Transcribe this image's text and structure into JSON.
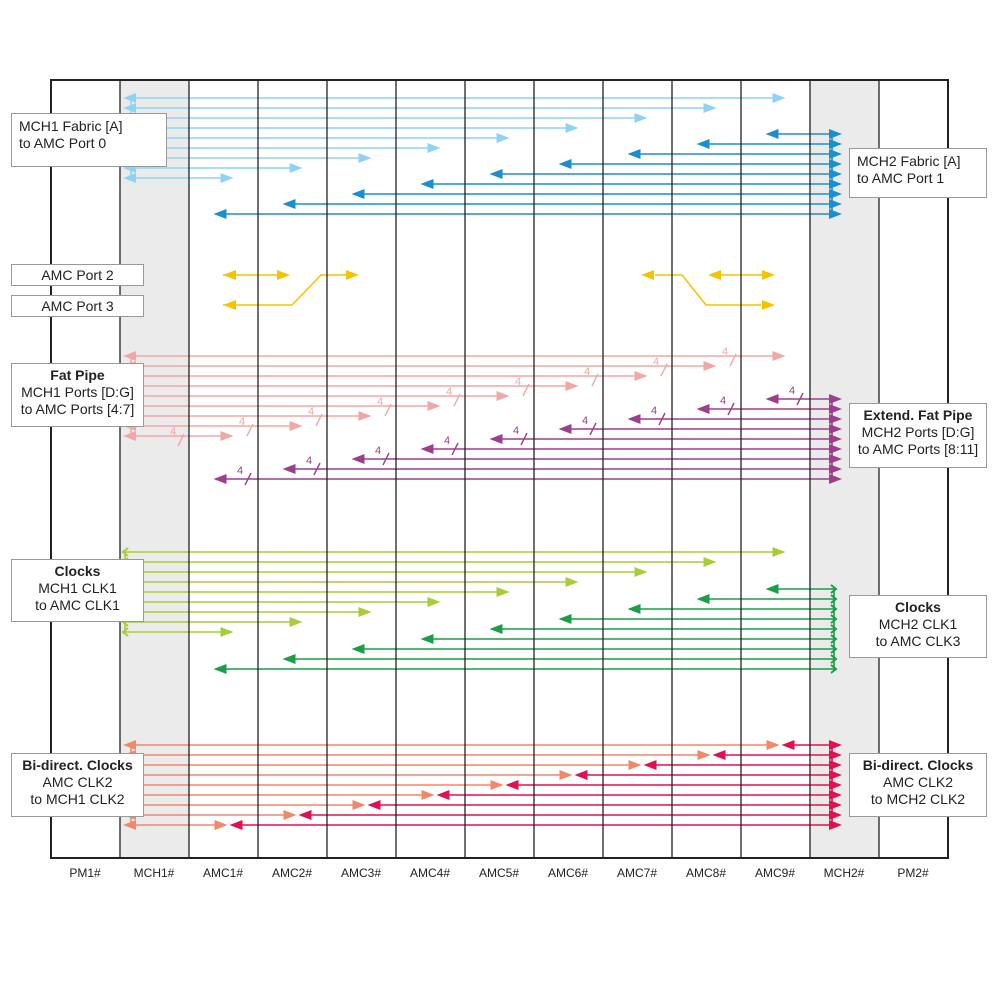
{
  "slots": [
    "PM1#",
    "MCH1#",
    "AMC1#",
    "AMC2#",
    "AMC3#",
    "AMC4#",
    "AMC5#",
    "AMC6#",
    "AMC7#",
    "AMC8#",
    "AMC9#",
    "MCH2#",
    "PM2#"
  ],
  "labels": {
    "mch1_fabric": {
      "line1": "MCH1 Fabric [A]",
      "line2": "to AMC Port 0"
    },
    "mch2_fabric": {
      "line1": "MCH2 Fabric [A]",
      "line2": "to AMC Port 1"
    },
    "amc_port2": "AMC Port 2",
    "amc_port3": "AMC Port 3",
    "fat_pipe": {
      "title": "Fat Pipe",
      "line1": "MCH1 Ports [D:G]",
      "line2": "to AMC Ports [4:7]"
    },
    "ext_fat_pipe": {
      "title": "Extend. Fat Pipe",
      "line1": "MCH2 Ports [D:G]",
      "line2": "to AMC Ports [8:11]"
    },
    "clocks_mch1": {
      "title": "Clocks",
      "line1": "MCH1 CLK1",
      "line2": "to AMC CLK1"
    },
    "clocks_mch2": {
      "title": "Clocks",
      "line1": "MCH2 CLK1",
      "line2": "to AMC CLK3"
    },
    "bidir_mch1": {
      "title": "Bi-direct. Clocks",
      "line1": "AMC CLK2",
      "line2": "to MCH1 CLK2"
    },
    "bidir_mch2": {
      "title": "Bi-direct. Clocks",
      "line1": "AMC CLK2",
      "line2": "to MCH2 CLK2"
    }
  },
  "lane_width_label": "4",
  "colors": {
    "mch1_fabric": "#8fd3f4",
    "mch2_fabric": "#1a8fd0",
    "amc_ports_2_3": "#f5c400",
    "fat_pipe": "#f2a7a7",
    "ext_fat_pipe": "#9c3f8c",
    "clocks_mch1": "#a8cc3a",
    "clocks_mch2": "#1a9e48",
    "bidir_mch1": "#f2876a",
    "bidir_mch2": "#e0114e",
    "mch_slot_fill": "#ebebeb"
  }
}
